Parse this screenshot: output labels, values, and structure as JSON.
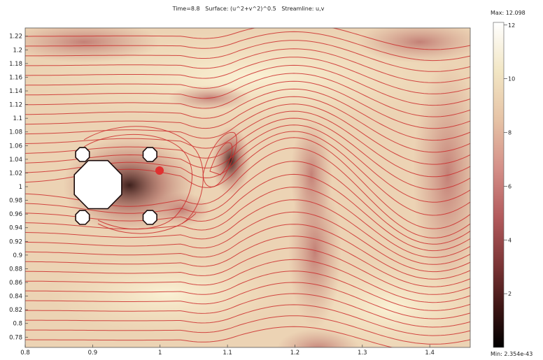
{
  "chart_data": {
    "type": "heatmap",
    "title": "Time=8.8   Surface: (u^2+v^2)^0.5   Streamline: u,v",
    "xlabel": "",
    "ylabel": "",
    "xlim": [
      0.8,
      1.46
    ],
    "ylim": [
      0.765,
      1.232
    ],
    "x_ticks": [
      "0.8",
      "0.9",
      "1",
      "1.1",
      "1.2",
      "1.3",
      "1.4"
    ],
    "y_ticks": [
      "0.78",
      "0.8",
      "0.82",
      "0.84",
      "0.86",
      "0.88",
      "0.9",
      "0.92",
      "0.94",
      "0.96",
      "0.98",
      "1",
      "1.02",
      "1.04",
      "1.06",
      "1.08",
      "1.1",
      "1.12",
      "1.14",
      "1.16",
      "1.18",
      "1.2",
      "1.22"
    ],
    "surface": {
      "quantity": "(u^2+v^2)^0.5",
      "colormap": [
        "#000000",
        "#3b1413",
        "#7a3435",
        "#b25a5c",
        "#d48f88",
        "#e6c3a6",
        "#f2e6c4",
        "#ffffff"
      ],
      "range": [
        0,
        12.098
      ]
    },
    "colorbar": {
      "max_label": "Max: 12.098",
      "min_label": "Min: 2.354e-43",
      "ticks": [
        "2",
        "4",
        "6",
        "8",
        "10",
        "12"
      ],
      "tick_values": [
        2,
        4,
        6,
        8,
        10,
        12
      ]
    },
    "obstacles": [
      {
        "shape": "octagon",
        "cx": 0.908,
        "cy": 1.003,
        "r": 0.038
      },
      {
        "shape": "octagon",
        "cx": 0.885,
        "cy": 1.047,
        "r": 0.011
      },
      {
        "shape": "octagon",
        "cx": 0.985,
        "cy": 1.047,
        "r": 0.011
      },
      {
        "shape": "octagon",
        "cx": 0.885,
        "cy": 0.955,
        "r": 0.011
      },
      {
        "shape": "octagon",
        "cx": 0.985,
        "cy": 0.955,
        "r": 0.011
      }
    ],
    "streamline_color": "#cc2b2b"
  }
}
